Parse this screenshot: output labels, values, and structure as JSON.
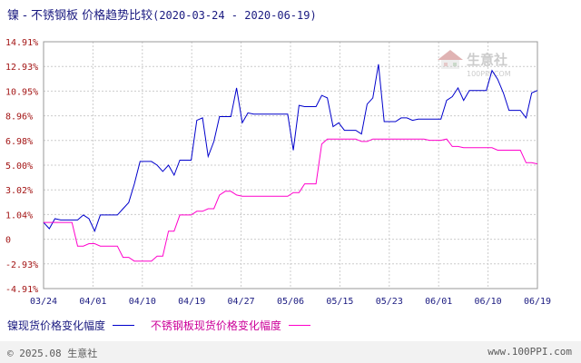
{
  "title": {
    "main": "镍 - 不锈钢板 价格趋势比较",
    "range": "(2020-03-24 - 2020-06-19)"
  },
  "watermark": {
    "brand": "生意社",
    "url": "100PPI.COM"
  },
  "legend": {
    "series1_label": "镍现货价格变化幅度",
    "series2_label": "不锈钢板现货价格变化幅度"
  },
  "footer": {
    "copyright": "© 2025.08 生意社",
    "url": "www.100PPI.com"
  },
  "colors": {
    "series1": "#0000cc",
    "series2": "#ff00cc",
    "grid": "#cccccc",
    "axis_text": "#a31515"
  },
  "chart_data": {
    "type": "line",
    "yticks": [
      "14.91%",
      "12.93%",
      "10.95%",
      "8.96%",
      "6.98%",
      "5.00%",
      "3.02%",
      "1.04%",
      "0",
      "-2.93%",
      "-4.91%"
    ],
    "ylim": [
      -4.91,
      14.91
    ],
    "xticks": [
      "03/24",
      "04/01",
      "04/10",
      "04/19",
      "04/27",
      "05/06",
      "05/15",
      "05/23",
      "06/01",
      "06/10",
      "06/19"
    ],
    "xlim": [
      0,
      87
    ],
    "series": [
      {
        "name": "镍现货价格变化幅度",
        "points": [
          [
            0,
            0.4
          ],
          [
            1,
            -0.1
          ],
          [
            2,
            0.7
          ],
          [
            3,
            0.6
          ],
          [
            4,
            0.6
          ],
          [
            5,
            0.6
          ],
          [
            6,
            0.6
          ],
          [
            7,
            1.0
          ],
          [
            8,
            0.7
          ],
          [
            9,
            -0.3
          ],
          [
            10,
            1.0
          ],
          [
            11,
            1.0
          ],
          [
            12,
            1.0
          ],
          [
            13,
            1.0
          ],
          [
            14,
            1.5
          ],
          [
            15,
            2.0
          ],
          [
            16,
            3.5
          ],
          [
            17,
            5.3
          ],
          [
            18,
            5.3
          ],
          [
            19,
            5.3
          ],
          [
            20,
            5.0
          ],
          [
            21,
            4.5
          ],
          [
            22,
            5.0
          ],
          [
            23,
            4.2
          ],
          [
            24,
            5.4
          ],
          [
            25,
            5.4
          ],
          [
            26,
            5.4
          ],
          [
            27,
            8.6
          ],
          [
            28,
            8.8
          ],
          [
            29,
            5.7
          ],
          [
            30,
            6.9
          ],
          [
            31,
            8.9
          ],
          [
            32,
            8.9
          ],
          [
            33,
            8.9
          ],
          [
            34,
            11.2
          ],
          [
            35,
            8.4
          ],
          [
            36,
            9.2
          ],
          [
            37,
            9.1
          ],
          [
            38,
            9.1
          ],
          [
            39,
            9.1
          ],
          [
            40,
            9.1
          ],
          [
            41,
            9.1
          ],
          [
            42,
            9.1
          ],
          [
            43,
            9.1
          ],
          [
            44,
            6.2
          ],
          [
            45,
            9.8
          ],
          [
            46,
            9.7
          ],
          [
            47,
            9.7
          ],
          [
            48,
            9.7
          ],
          [
            49,
            10.6
          ],
          [
            50,
            10.4
          ],
          [
            51,
            8.1
          ],
          [
            52,
            8.4
          ],
          [
            53,
            7.8
          ],
          [
            54,
            7.8
          ],
          [
            55,
            7.8
          ],
          [
            56,
            7.5
          ],
          [
            57,
            9.9
          ],
          [
            58,
            10.4
          ],
          [
            59,
            13.1
          ],
          [
            60,
            8.5
          ],
          [
            61,
            8.5
          ],
          [
            62,
            8.5
          ],
          [
            63,
            8.8
          ],
          [
            64,
            8.8
          ],
          [
            65,
            8.6
          ],
          [
            66,
            8.7
          ],
          [
            67,
            8.7
          ],
          [
            68,
            8.7
          ],
          [
            69,
            8.7
          ],
          [
            70,
            8.7
          ],
          [
            71,
            10.2
          ],
          [
            72,
            10.5
          ],
          [
            73,
            11.2
          ],
          [
            74,
            10.2
          ],
          [
            75,
            11.0
          ],
          [
            76,
            11.0
          ],
          [
            77,
            11.0
          ],
          [
            78,
            11.0
          ],
          [
            79,
            12.6
          ],
          [
            80,
            11.9
          ],
          [
            81,
            10.8
          ],
          [
            82,
            9.4
          ],
          [
            83,
            9.4
          ],
          [
            84,
            9.4
          ],
          [
            85,
            8.8
          ],
          [
            86,
            10.8
          ],
          [
            87,
            11.0
          ]
        ]
      },
      {
        "name": "不锈钢板现货价格变化幅度",
        "points": [
          [
            0,
            0.4
          ],
          [
            1,
            0.4
          ],
          [
            2,
            0.4
          ],
          [
            3,
            0.4
          ],
          [
            4,
            0.4
          ],
          [
            5,
            0.4
          ],
          [
            6,
            -1.5
          ],
          [
            7,
            -1.5
          ],
          [
            8,
            -1.3
          ],
          [
            9,
            -1.3
          ],
          [
            10,
            -1.5
          ],
          [
            11,
            -1.5
          ],
          [
            12,
            -1.5
          ],
          [
            13,
            -1.5
          ],
          [
            14,
            -2.4
          ],
          [
            15,
            -2.4
          ],
          [
            16,
            -2.7
          ],
          [
            17,
            -2.7
          ],
          [
            18,
            -2.7
          ],
          [
            19,
            -2.7
          ],
          [
            20,
            -2.3
          ],
          [
            21,
            -2.3
          ],
          [
            22,
            -0.3
          ],
          [
            23,
            -0.3
          ],
          [
            24,
            1.0
          ],
          [
            25,
            1.0
          ],
          [
            26,
            1.0
          ],
          [
            27,
            1.3
          ],
          [
            28,
            1.3
          ],
          [
            29,
            1.5
          ],
          [
            30,
            1.5
          ],
          [
            31,
            2.6
          ],
          [
            32,
            2.9
          ],
          [
            33,
            2.9
          ],
          [
            34,
            2.6
          ],
          [
            35,
            2.5
          ],
          [
            36,
            2.5
          ],
          [
            37,
            2.5
          ],
          [
            38,
            2.5
          ],
          [
            39,
            2.5
          ],
          [
            40,
            2.5
          ],
          [
            41,
            2.5
          ],
          [
            42,
            2.5
          ],
          [
            43,
            2.5
          ],
          [
            44,
            2.8
          ],
          [
            45,
            2.8
          ],
          [
            46,
            3.5
          ],
          [
            47,
            3.5
          ],
          [
            48,
            3.5
          ],
          [
            49,
            6.7
          ],
          [
            50,
            7.1
          ],
          [
            51,
            7.1
          ],
          [
            52,
            7.1
          ],
          [
            53,
            7.1
          ],
          [
            54,
            7.1
          ],
          [
            55,
            7.1
          ],
          [
            56,
            6.9
          ],
          [
            57,
            6.9
          ],
          [
            58,
            7.1
          ],
          [
            59,
            7.1
          ],
          [
            60,
            7.1
          ],
          [
            61,
            7.1
          ],
          [
            62,
            7.1
          ],
          [
            63,
            7.1
          ],
          [
            64,
            7.1
          ],
          [
            65,
            7.1
          ],
          [
            66,
            7.1
          ],
          [
            67,
            7.1
          ],
          [
            68,
            7.0
          ],
          [
            69,
            7.0
          ],
          [
            70,
            7.0
          ],
          [
            71,
            7.1
          ],
          [
            72,
            6.5
          ],
          [
            73,
            6.5
          ],
          [
            74,
            6.4
          ],
          [
            75,
            6.4
          ],
          [
            76,
            6.4
          ],
          [
            77,
            6.4
          ],
          [
            78,
            6.4
          ],
          [
            79,
            6.4
          ],
          [
            80,
            6.2
          ],
          [
            81,
            6.2
          ],
          [
            82,
            6.2
          ],
          [
            83,
            6.2
          ],
          [
            84,
            6.2
          ],
          [
            85,
            5.2
          ],
          [
            86,
            5.2
          ],
          [
            87,
            5.1
          ]
        ]
      }
    ]
  }
}
